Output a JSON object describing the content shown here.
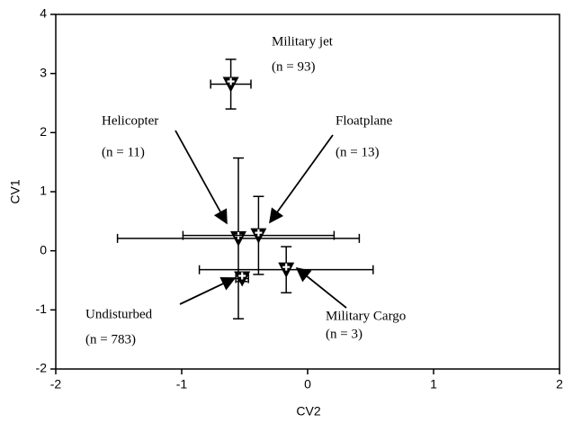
{
  "chart_data": {
    "type": "scatter",
    "x_label": "CV2",
    "y_label": "CV1",
    "xlim": [
      -2,
      2
    ],
    "xticks": [
      -2,
      -1,
      0,
      1,
      2
    ],
    "ylim": [
      -2,
      4
    ],
    "yticks": [
      -2,
      -1,
      0,
      1,
      2,
      3,
      4
    ],
    "color": "#000000",
    "points": [
      {
        "name": "Military jet",
        "n_label": "(n = 93)",
        "x": -0.61,
        "y": 2.82,
        "xerr": 0.16,
        "yerr": 0.42
      },
      {
        "name": "Helicopter",
        "n_label": "(n = 11)",
        "x": -0.55,
        "y": 0.21,
        "xerr": 0.96,
        "yerr": 1.36
      },
      {
        "name": "Floatplane",
        "n_label": "(n = 13)",
        "x": -0.39,
        "y": 0.26,
        "xerr": 0.6,
        "yerr": 0.66
      },
      {
        "name": "Undisturbed",
        "n_label": "(n = 783)",
        "x": -0.52,
        "y": -0.47,
        "xerr": 0.05,
        "yerr": 0.05
      },
      {
        "name": "Military Cargo",
        "n_label": "(n = 3)",
        "x": -0.17,
        "y": -0.32,
        "xerr": 0.69,
        "yerr": 0.39
      }
    ]
  }
}
